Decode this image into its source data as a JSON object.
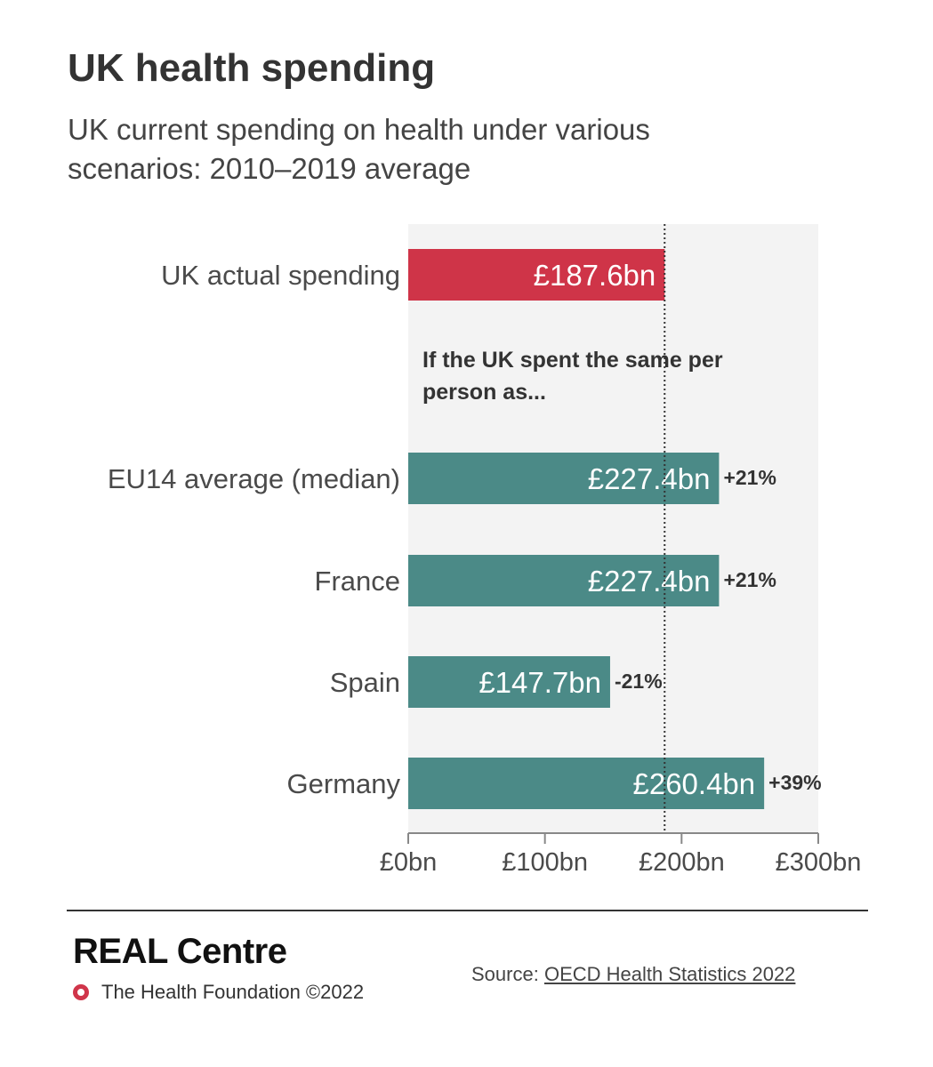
{
  "header": {
    "title": "UK health spending",
    "subtitle": "UK current spending on health under various scenarios: 2010–2019 average"
  },
  "chart_data": {
    "type": "bar",
    "orientation": "horizontal",
    "categories": [
      "UK actual spending",
      "EU14 average (median)",
      "France",
      "Spain",
      "Germany"
    ],
    "values": [
      187.6,
      227.4,
      227.4,
      147.7,
      260.4
    ],
    "value_labels": [
      "£187.6bn",
      "£227.4bn",
      "£227.4bn",
      "£147.7bn",
      "£260.4bn"
    ],
    "change_labels": [
      "",
      "+21%",
      "+21%",
      "-21%",
      "+39%"
    ],
    "bar_colors": [
      "#cf3448",
      "#4b8a87",
      "#4b8a87",
      "#4b8a87",
      "#4b8a87"
    ],
    "xlim": [
      0,
      300
    ],
    "xticks": [
      0,
      100,
      200,
      300
    ],
    "xtick_labels": [
      "£0bn",
      "£100bn",
      "£200bn",
      "£300bn"
    ],
    "reference_line": 187.6,
    "annotation": "If the UK spent the same per person as...",
    "background_color": "#f3f3f3",
    "grid": false
  },
  "footer": {
    "brand": "REAL Centre",
    "foundation": "The Health Foundation ©2022",
    "source_prefix": "Source:",
    "source_link": "OECD Health Statistics 2022"
  }
}
